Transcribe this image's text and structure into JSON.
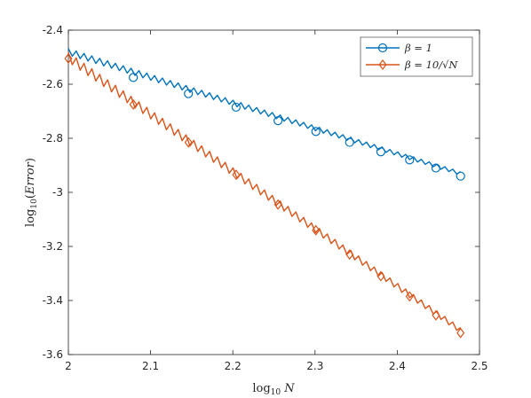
{
  "chart_data": {
    "type": "line",
    "title": "",
    "xlabel": "log10 N",
    "ylabel": "log10(Error)",
    "xlim": [
      2,
      2.5
    ],
    "ylim": [
      -3.6,
      -2.4
    ],
    "x_ticks": [
      2,
      2.1,
      2.2,
      2.3,
      2.4,
      2.5
    ],
    "x_tick_labels": [
      "2",
      "2.1",
      "2.2",
      "2.3",
      "2.4",
      "2.5"
    ],
    "y_ticks": [
      -2.4,
      -2.6,
      -2.8,
      -3,
      -3.2,
      -3.4,
      -3.6
    ],
    "y_tick_labels": [
      "-2.4",
      "-2.6",
      "-2.8",
      "-3",
      "-3.2",
      "-3.4",
      "-3.6"
    ],
    "grid": false,
    "legend_position": "top-right",
    "series": [
      {
        "name": "β = 1",
        "color": "#0072BD",
        "marker": "circle",
        "x_start": 2.0,
        "x_end": 2.477,
        "y_start": -2.48,
        "y_end": -2.93,
        "oscillation_amplitude": 0.012,
        "markers_x": [
          2.079,
          2.146,
          2.204,
          2.255,
          2.301,
          2.342,
          2.38,
          2.415,
          2.447,
          2.477
        ],
        "markers_y": [
          -2.575,
          -2.635,
          -2.685,
          -2.735,
          -2.775,
          -2.815,
          -2.85,
          -2.88,
          -2.91,
          -2.94
        ]
      },
      {
        "name": "β = 10/√N",
        "color": "#D95319",
        "marker": "diamond",
        "x_start": 2.0,
        "x_end": 2.477,
        "y_start": -2.5,
        "y_end": -3.51,
        "oscillation_amplitude": 0.018,
        "markers_x": [
          2.0,
          2.079,
          2.146,
          2.204,
          2.255,
          2.301,
          2.342,
          2.38,
          2.415,
          2.447,
          2.477
        ],
        "markers_y": [
          -2.505,
          -2.675,
          -2.815,
          -2.935,
          -3.045,
          -3.14,
          -3.23,
          -3.31,
          -3.385,
          -3.455,
          -3.52
        ]
      }
    ]
  }
}
